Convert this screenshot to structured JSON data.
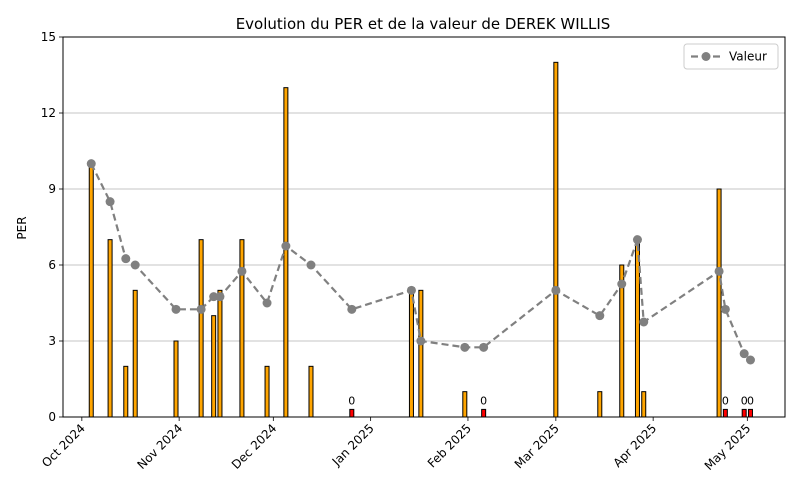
{
  "chart_data": {
    "type": "bar+line",
    "title": "Evolution du PER et de la valeur de DEREK WILLIS",
    "ylabel": "PER",
    "xlabel": "",
    "ylim": [
      0,
      15
    ],
    "yticks": [
      0,
      3,
      6,
      9,
      12,
      15
    ],
    "grid": "y",
    "legend_position": "top-right",
    "xlim": [
      "2024-09-25",
      "2025-05-13"
    ],
    "xticks": [
      {
        "date": "2024-10-01",
        "label": "Oct 2024"
      },
      {
        "date": "2024-11-01",
        "label": "Nov 2024"
      },
      {
        "date": "2024-12-01",
        "label": "Dec 2024"
      },
      {
        "date": "2025-01-01",
        "label": "Jan 2025"
      },
      {
        "date": "2025-02-01",
        "label": "Feb 2025"
      },
      {
        "date": "2025-03-01",
        "label": "Mar 2025"
      },
      {
        "date": "2025-04-01",
        "label": "Apr 2025"
      },
      {
        "date": "2025-05-01",
        "label": "May 2025"
      }
    ],
    "colors": {
      "bar": "#FFA500",
      "bar_zero": "#FF0000",
      "line": "#808080",
      "grid": "#b0b0b0"
    },
    "bars": [
      {
        "date": "2024-10-04",
        "value": 10
      },
      {
        "date": "2024-10-10",
        "value": 7
      },
      {
        "date": "2024-10-15",
        "value": 2
      },
      {
        "date": "2024-10-18",
        "value": 5
      },
      {
        "date": "2024-10-31",
        "value": 3
      },
      {
        "date": "2024-11-08",
        "value": 7
      },
      {
        "date": "2024-11-12",
        "value": 4
      },
      {
        "date": "2024-11-14",
        "value": 5
      },
      {
        "date": "2024-11-21",
        "value": 7
      },
      {
        "date": "2024-11-29",
        "value": 2
      },
      {
        "date": "2024-12-05",
        "value": 13
      },
      {
        "date": "2024-12-13",
        "value": 2
      },
      {
        "date": "2024-12-26",
        "value": 0,
        "label": "0"
      },
      {
        "date": "2025-01-14",
        "value": 5
      },
      {
        "date": "2025-01-17",
        "value": 5
      },
      {
        "date": "2025-01-31",
        "value": 1
      },
      {
        "date": "2025-02-06",
        "value": 0,
        "label": "0"
      },
      {
        "date": "2025-03-01",
        "value": 14
      },
      {
        "date": "2025-03-15",
        "value": 1
      },
      {
        "date": "2025-03-22",
        "value": 6
      },
      {
        "date": "2025-03-27",
        "value": 7
      },
      {
        "date": "2025-03-29",
        "value": 1
      },
      {
        "date": "2025-04-22",
        "value": 9
      },
      {
        "date": "2025-04-24",
        "value": 0,
        "label": "0"
      },
      {
        "date": "2025-04-30",
        "value": 0,
        "label": "0"
      },
      {
        "date": "2025-05-02",
        "value": 0,
        "label": "0"
      }
    ],
    "series": [
      {
        "name": "Valeur",
        "points": [
          {
            "date": "2024-10-04",
            "value": 10.0
          },
          {
            "date": "2024-10-10",
            "value": 8.5
          },
          {
            "date": "2024-10-15",
            "value": 6.25
          },
          {
            "date": "2024-10-18",
            "value": 6.0
          },
          {
            "date": "2024-10-31",
            "value": 4.25
          },
          {
            "date": "2024-11-08",
            "value": 4.25
          },
          {
            "date": "2024-11-12",
            "value": 4.75
          },
          {
            "date": "2024-11-14",
            "value": 4.75
          },
          {
            "date": "2024-11-21",
            "value": 5.75
          },
          {
            "date": "2024-11-29",
            "value": 4.5
          },
          {
            "date": "2024-12-05",
            "value": 6.75
          },
          {
            "date": "2024-12-13",
            "value": 6.0
          },
          {
            "date": "2024-12-26",
            "value": 4.25
          },
          {
            "date": "2025-01-14",
            "value": 5.0
          },
          {
            "date": "2025-01-17",
            "value": 3.0
          },
          {
            "date": "2025-01-31",
            "value": 2.75
          },
          {
            "date": "2025-02-06",
            "value": 2.75
          },
          {
            "date": "2025-03-01",
            "value": 5.0
          },
          {
            "date": "2025-03-15",
            "value": 4.0
          },
          {
            "date": "2025-03-22",
            "value": 5.25
          },
          {
            "date": "2025-03-27",
            "value": 7.0
          },
          {
            "date": "2025-03-29",
            "value": 3.75
          },
          {
            "date": "2025-04-22",
            "value": 5.75
          },
          {
            "date": "2025-04-24",
            "value": 4.25
          },
          {
            "date": "2025-04-30",
            "value": 2.5
          },
          {
            "date": "2025-05-02",
            "value": 2.25
          }
        ]
      }
    ]
  }
}
